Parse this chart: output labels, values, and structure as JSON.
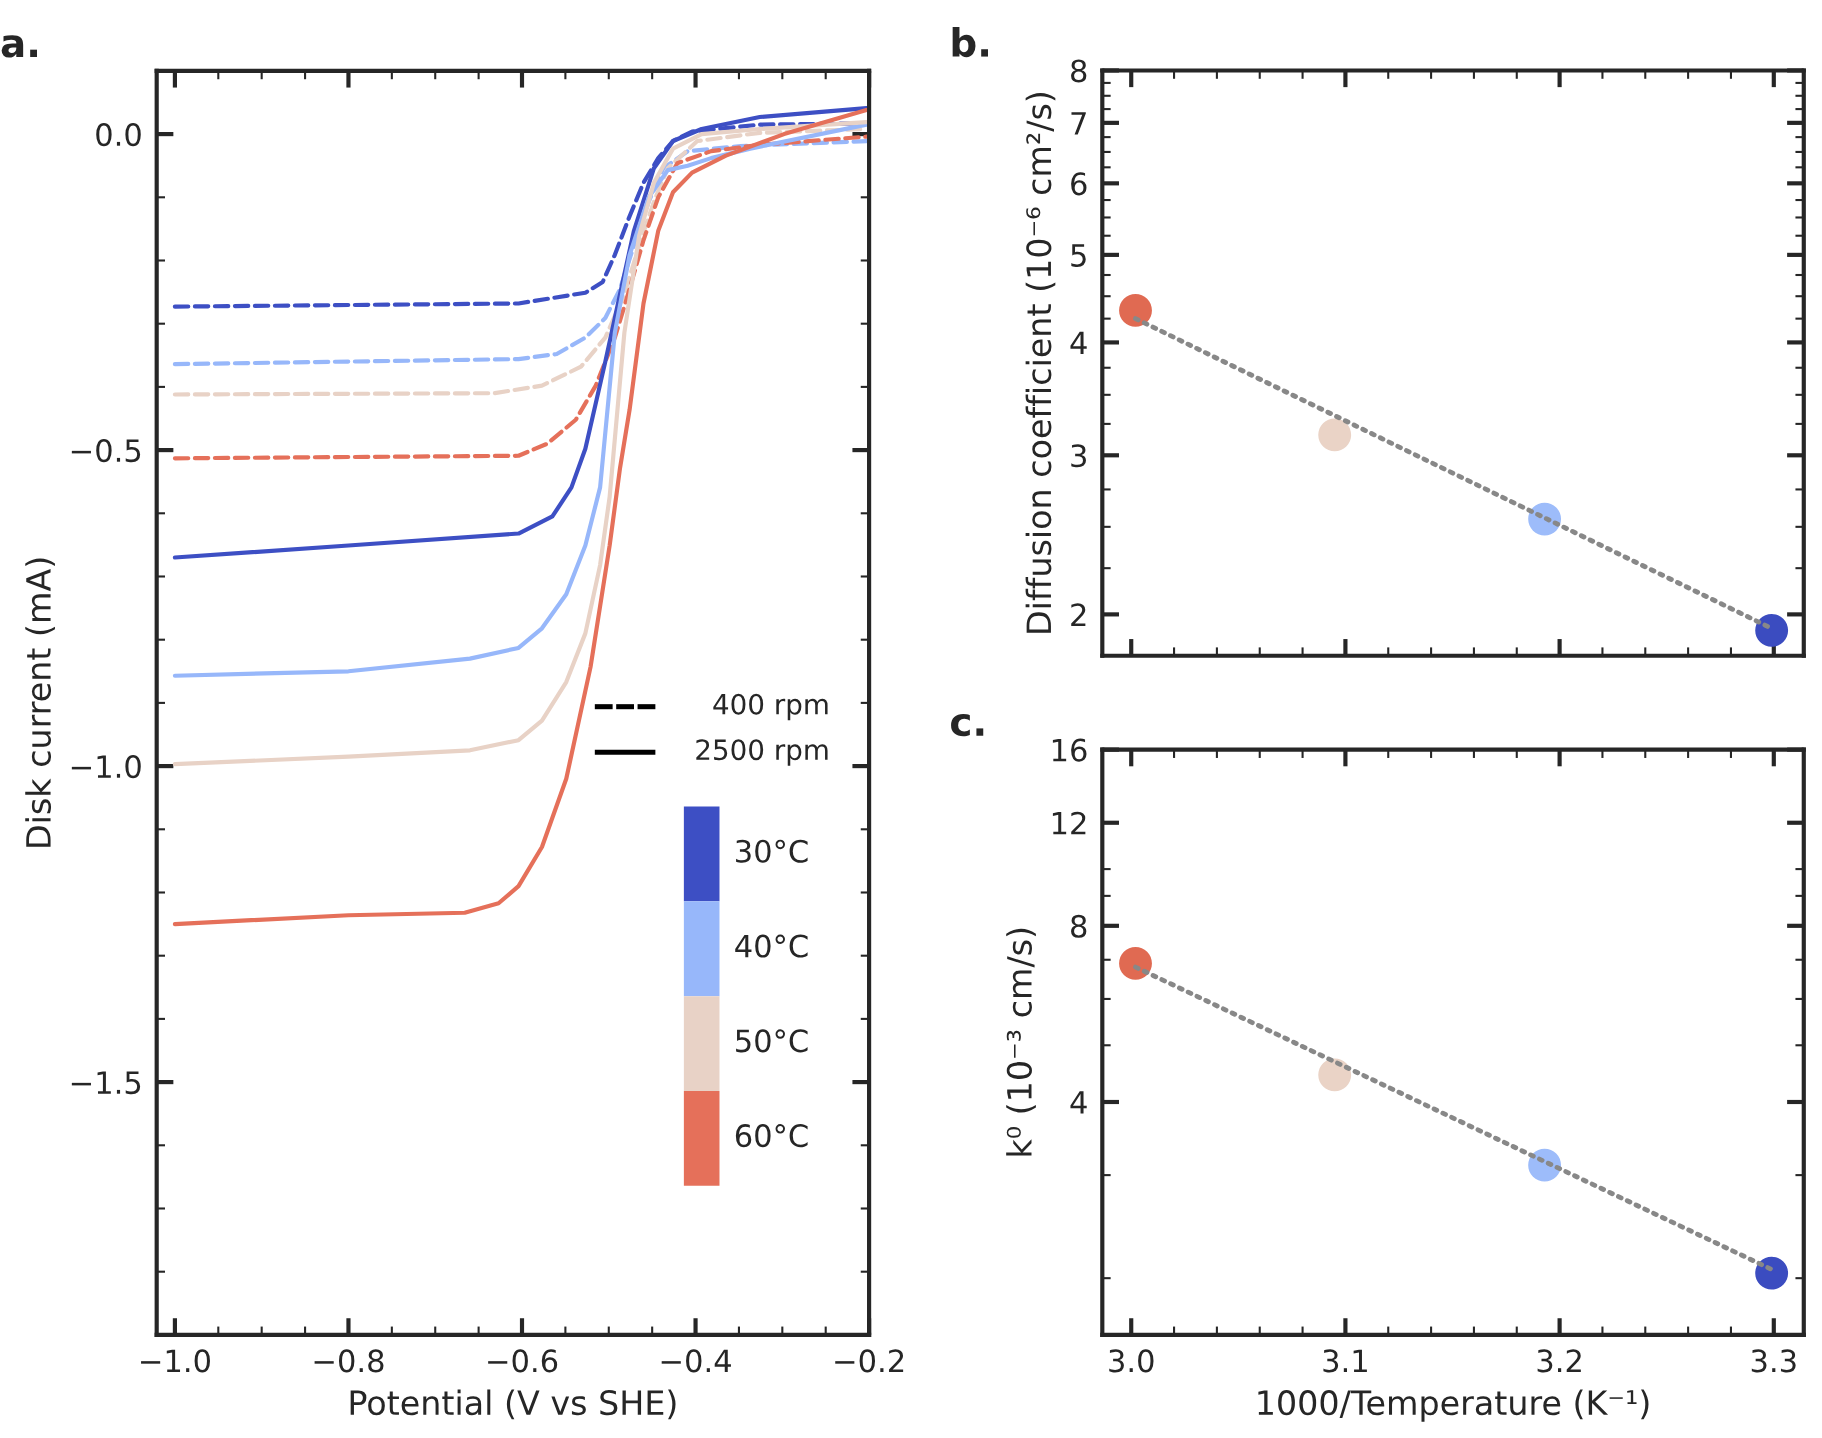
{
  "chart_data": [
    {
      "type": "line",
      "title": "a.",
      "xlabel": "Potential (V vs SHE)",
      "ylabel": "Disk current (mA)",
      "xlim": [
        -1.021,
        -0.2
      ],
      "ylim": [
        -1.9,
        0.1
      ],
      "xticks": [
        {
          "value": -1.0,
          "label": "−1.0"
        },
        {
          "value": -0.8,
          "label": "−0.8"
        },
        {
          "value": -0.6,
          "label": "−0.6"
        },
        {
          "value": -0.4,
          "label": "−0.4"
        },
        {
          "value": -0.2,
          "label": "−0.2"
        }
      ],
      "yticks": [
        {
          "value": 0,
          "label": "0.0"
        },
        {
          "value": -0.5,
          "label": "−0.5"
        },
        {
          "value": -1.0,
          "label": "−1.0"
        },
        {
          "value": -1.5,
          "label": "−1.5"
        }
      ],
      "annotations": [
        "400 rpm",
        "2500 rpm",
        "30°C",
        "40°C",
        "50°C",
        "60°C"
      ],
      "series": [
        {
          "color": "#3d4fc4",
          "line_style": "dashed",
          "x": [
            -1.0,
            -0.604,
            -0.527,
            -0.507,
            -0.493,
            -0.476,
            -0.46,
            -0.443,
            -0.426,
            -0.404,
            -0.326,
            -0.203
          ],
          "values": [
            -0.273,
            -0.268,
            -0.251,
            -0.234,
            -0.191,
            -0.13,
            -0.077,
            -0.038,
            -0.011,
            0.004,
            0.015,
            0.017
          ]
        },
        {
          "color": "#97b7fa",
          "line_style": "dashed",
          "x": [
            -1.0,
            -0.604,
            -0.56,
            -0.527,
            -0.504,
            -0.487,
            -0.471,
            -0.454,
            -0.437,
            -0.409,
            -0.348,
            -0.203
          ],
          "values": [
            -0.364,
            -0.356,
            -0.348,
            -0.322,
            -0.291,
            -0.245,
            -0.176,
            -0.107,
            -0.054,
            -0.027,
            -0.019,
            -0.011
          ]
        },
        {
          "color": "#e8d2c6",
          "line_style": "dashed",
          "x": [
            -1.0,
            -0.632,
            -0.577,
            -0.532,
            -0.504,
            -0.482,
            -0.465,
            -0.448,
            -0.432,
            -0.398,
            -0.326,
            -0.203
          ],
          "values": [
            -0.412,
            -0.41,
            -0.398,
            -0.368,
            -0.322,
            -0.253,
            -0.176,
            -0.107,
            -0.054,
            -0.011,
            0.002,
            0.008
          ]
        },
        {
          "color": "#e5705a",
          "line_style": "dashed",
          "x": [
            -1.0,
            -0.604,
            -0.571,
            -0.538,
            -0.515,
            -0.493,
            -0.476,
            -0.46,
            -0.443,
            -0.421,
            -0.382,
            -0.326,
            -0.203
          ],
          "values": [
            -0.513,
            -0.509,
            -0.49,
            -0.452,
            -0.398,
            -0.322,
            -0.245,
            -0.168,
            -0.1,
            -0.046,
            -0.027,
            -0.017,
            -0.004
          ]
        },
        {
          "color": "#3d4fc4",
          "line_style": "solid",
          "x": [
            -1.0,
            -0.8,
            -0.604,
            -0.565,
            -0.543,
            -0.527,
            -0.504,
            -0.487,
            -0.471,
            -0.448,
            -0.426,
            -0.393,
            -0.326,
            -0.203
          ],
          "values": [
            -0.67,
            -0.651,
            -0.632,
            -0.605,
            -0.559,
            -0.498,
            -0.36,
            -0.253,
            -0.153,
            -0.054,
            -0.011,
            0.008,
            0.027,
            0.041
          ]
        },
        {
          "color": "#97b7fa",
          "line_style": "solid",
          "x": [
            -1.0,
            -0.8,
            -0.66,
            -0.604,
            -0.577,
            -0.549,
            -0.527,
            -0.51,
            -0.493,
            -0.476,
            -0.454,
            -0.432,
            -0.409,
            -0.382,
            -0.337,
            -0.203
          ],
          "values": [
            -0.857,
            -0.85,
            -0.83,
            -0.813,
            -0.782,
            -0.728,
            -0.651,
            -0.559,
            -0.314,
            -0.191,
            -0.1,
            -0.057,
            -0.05,
            -0.038,
            -0.023,
            0.015
          ]
        },
        {
          "color": "#e8d2c6",
          "line_style": "solid",
          "x": [
            -1.0,
            -0.8,
            -0.66,
            -0.604,
            -0.577,
            -0.549,
            -0.527,
            -0.51,
            -0.499,
            -0.493,
            -0.482,
            -0.465,
            -0.448,
            -0.426,
            -0.393,
            -0.326,
            -0.203
          ],
          "values": [
            -0.997,
            -0.985,
            -0.975,
            -0.959,
            -0.928,
            -0.867,
            -0.79,
            -0.682,
            -0.574,
            -0.482,
            -0.314,
            -0.161,
            -0.077,
            -0.023,
            0.0,
            0.008,
            0.019
          ]
        },
        {
          "color": "#e5705a",
          "line_style": "solid",
          "x": [
            -1.0,
            -0.8,
            -0.666,
            -0.627,
            -0.604,
            -0.577,
            -0.549,
            -0.521,
            -0.499,
            -0.487,
            -0.476,
            -0.46,
            -0.443,
            -0.426,
            -0.404,
            -0.365,
            -0.298,
            -0.203
          ],
          "values": [
            -1.25,
            -1.236,
            -1.232,
            -1.217,
            -1.19,
            -1.128,
            -1.02,
            -0.843,
            -0.651,
            -0.528,
            -0.436,
            -0.268,
            -0.153,
            -0.092,
            -0.061,
            -0.034,
            0.0,
            0.038
          ]
        }
      ]
    },
    {
      "type": "scatter",
      "title": "b.",
      "ylabel": "Diffusion coefficient (10⁻⁶ cm²/s)",
      "log": true,
      "marker": "circle",
      "tick_labels": "y",
      "xlim": [
        2.9865,
        3.314
      ],
      "ylim": [
        1.8,
        8
      ],
      "xticks": [
        3.0,
        3.1,
        3.2,
        3.3
      ],
      "yticks": [
        2,
        3,
        4,
        5,
        6,
        7,
        8
      ],
      "series": [
        {
          "type": "scatter",
          "x": [
            3.002,
            3.095,
            3.193,
            3.299
          ],
          "values": [
            4.34,
            3.16,
            2.55,
            1.92
          ],
          "colors": [
            "#e06a52",
            "#ead3c6",
            "#9dbcfa",
            "#3b4cc0"
          ]
        },
        {
          "type": "line",
          "marker": "none",
          "color": "#888888",
          "line_style": "dotted",
          "x": [
            3.002,
            3.299
          ],
          "values": [
            4.25,
            1.93
          ]
        }
      ]
    },
    {
      "type": "scatter",
      "title": "c.",
      "xlabel": "1000/Temperature (K⁻¹)",
      "ylabel": "k⁰ (10⁻³ cm/s)",
      "log": true,
      "marker": "circle",
      "xlim": [
        2.9865,
        3.314
      ],
      "ylim": [
        1.6,
        16
      ],
      "xticks": [
        {
          "value": 3.0,
          "label": "3.0"
        },
        3.1,
        3.2,
        3.3
      ],
      "yticks": [
        4,
        8,
        12,
        16
      ],
      "series": [
        {
          "type": "scatter",
          "x": [
            3.002,
            3.095,
            3.193,
            3.299
          ],
          "values": [
            6.9,
            4.45,
            3.12,
            2.04
          ],
          "colors": [
            "#e06a52",
            "#ead3c6",
            "#9dbcfa",
            "#3b4cc0"
          ]
        },
        {
          "type": "line",
          "marker": "none",
          "color": "#888888",
          "line_style": "dotted",
          "x": [
            3.002,
            3.299
          ],
          "values": [
            6.8,
            2.07
          ]
        }
      ]
    }
  ]
}
